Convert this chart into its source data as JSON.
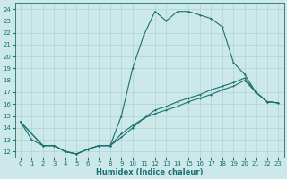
{
  "xlabel": "Humidex (Indice chaleur)",
  "ylabel": "",
  "xlim": [
    -0.5,
    23.5
  ],
  "ylim": [
    11.5,
    24.5
  ],
  "xticks": [
    0,
    1,
    2,
    3,
    4,
    5,
    6,
    7,
    8,
    9,
    10,
    11,
    12,
    13,
    14,
    15,
    16,
    17,
    18,
    19,
    20,
    21,
    22,
    23
  ],
  "yticks": [
    12,
    13,
    14,
    15,
    16,
    17,
    18,
    19,
    20,
    21,
    22,
    23,
    24
  ],
  "bg_color": "#cce8e8",
  "grid_color": "#aad4d4",
  "line_color": "#1a7070",
  "line1_x": [
    0,
    1,
    2,
    3,
    4,
    5,
    6,
    7,
    8,
    9,
    10,
    11,
    12,
    13,
    14,
    15,
    16,
    17,
    18,
    19,
    20,
    21,
    22,
    23
  ],
  "line1_y": [
    14.5,
    13.0,
    12.5,
    12.5,
    12.0,
    11.8,
    12.2,
    12.5,
    12.5,
    15.0,
    19.0,
    21.8,
    23.8,
    23.0,
    23.8,
    23.8,
    23.5,
    23.2,
    22.5,
    19.5,
    18.5,
    17.0,
    16.2,
    16.1
  ],
  "line2_x": [
    0,
    2,
    3,
    4,
    5,
    6,
    7,
    8,
    9,
    10,
    11,
    12,
    13,
    14,
    15,
    16,
    17,
    18,
    19,
    20,
    21,
    22,
    23
  ],
  "line2_y": [
    14.5,
    12.5,
    12.5,
    12.0,
    11.8,
    12.2,
    12.5,
    12.5,
    13.2,
    14.0,
    14.8,
    15.5,
    15.8,
    16.2,
    16.5,
    16.8,
    17.2,
    17.5,
    17.8,
    18.2,
    17.0,
    16.2,
    16.1
  ],
  "line3_x": [
    0,
    2,
    3,
    4,
    5,
    6,
    7,
    8,
    9,
    10,
    11,
    12,
    13,
    14,
    15,
    16,
    17,
    18,
    19,
    20,
    21,
    22,
    23
  ],
  "line3_y": [
    14.5,
    12.5,
    12.5,
    12.0,
    11.8,
    12.2,
    12.5,
    12.5,
    13.5,
    14.2,
    14.8,
    15.2,
    15.5,
    15.8,
    16.2,
    16.5,
    16.8,
    17.2,
    17.5,
    18.0,
    17.0,
    16.2,
    16.1
  ]
}
